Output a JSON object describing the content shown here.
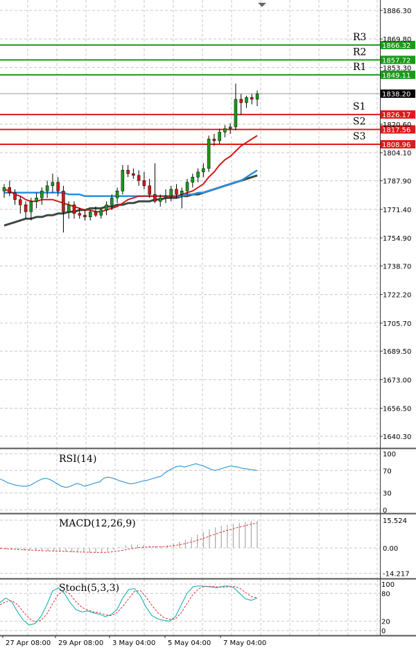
{
  "chart_data": [
    {
      "type": "candlestick",
      "y_ticks": [
        "1886.30",
        "1869.80",
        "1853.30",
        "1820.60",
        "1804.10",
        "1787.90",
        "1771.40",
        "1754.90",
        "1738.70",
        "1722.20",
        "1705.70",
        "1689.50",
        "1673.00",
        "1656.50",
        "1640.30"
      ],
      "ylim": [
        1634,
        1890
      ],
      "grid": true,
      "current_price": "1838.20",
      "current_price_value": 1838.2,
      "levels": [
        {
          "label": "R3",
          "value": 1866.32,
          "value_text": "1866.32",
          "color": "#1a9a1a"
        },
        {
          "label": "R2",
          "value": 1857.72,
          "value_text": "1857.72",
          "color": "#1a9a1a"
        },
        {
          "label": "R1",
          "value": 1849.11,
          "value_text": "1849.11",
          "color": "#1a9a1a"
        },
        {
          "label": "S1",
          "value": 1826.17,
          "value_text": "1826.17",
          "color": "#e01a1a"
        },
        {
          "label": "S2",
          "value": 1817.56,
          "value_text": "1817.56",
          "color": "#e01a1a"
        },
        {
          "label": "S3",
          "value": 1808.96,
          "value_text": "1808.96",
          "color": "#e01a1a"
        }
      ],
      "candles": [
        {
          "o": 1782,
          "h": 1786,
          "l": 1778,
          "c": 1784
        },
        {
          "o": 1784,
          "h": 1788,
          "l": 1779,
          "c": 1781
        },
        {
          "o": 1781,
          "h": 1783,
          "l": 1774,
          "c": 1777
        },
        {
          "o": 1777,
          "h": 1779,
          "l": 1769,
          "c": 1774
        },
        {
          "o": 1774,
          "h": 1776,
          "l": 1766,
          "c": 1770
        },
        {
          "o": 1770,
          "h": 1778,
          "l": 1765,
          "c": 1776
        },
        {
          "o": 1776,
          "h": 1781,
          "l": 1772,
          "c": 1778
        },
        {
          "o": 1778,
          "h": 1784,
          "l": 1774,
          "c": 1782
        },
        {
          "o": 1782,
          "h": 1788,
          "l": 1778,
          "c": 1785
        },
        {
          "o": 1785,
          "h": 1792,
          "l": 1781,
          "c": 1787
        },
        {
          "o": 1787,
          "h": 1790,
          "l": 1779,
          "c": 1782
        },
        {
          "o": 1782,
          "h": 1785,
          "l": 1758,
          "c": 1770
        },
        {
          "o": 1770,
          "h": 1776,
          "l": 1766,
          "c": 1774
        },
        {
          "o": 1774,
          "h": 1776,
          "l": 1766,
          "c": 1769
        },
        {
          "o": 1769,
          "h": 1772,
          "l": 1766,
          "c": 1768
        },
        {
          "o": 1768,
          "h": 1771,
          "l": 1765,
          "c": 1767
        },
        {
          "o": 1767,
          "h": 1771,
          "l": 1765,
          "c": 1770
        },
        {
          "o": 1770,
          "h": 1773,
          "l": 1767,
          "c": 1768
        },
        {
          "o": 1768,
          "h": 1772,
          "l": 1766,
          "c": 1771
        },
        {
          "o": 1771,
          "h": 1776,
          "l": 1768,
          "c": 1774
        },
        {
          "o": 1774,
          "h": 1780,
          "l": 1771,
          "c": 1778
        },
        {
          "o": 1778,
          "h": 1784,
          "l": 1775,
          "c": 1782
        },
        {
          "o": 1782,
          "h": 1797,
          "l": 1780,
          "c": 1794
        },
        {
          "o": 1794,
          "h": 1797,
          "l": 1790,
          "c": 1792
        },
        {
          "o": 1792,
          "h": 1795,
          "l": 1789,
          "c": 1791
        },
        {
          "o": 1791,
          "h": 1794,
          "l": 1785,
          "c": 1788
        },
        {
          "o": 1788,
          "h": 1793,
          "l": 1783,
          "c": 1785
        },
        {
          "o": 1785,
          "h": 1789,
          "l": 1778,
          "c": 1780
        },
        {
          "o": 1780,
          "h": 1798,
          "l": 1775,
          "c": 1776
        },
        {
          "o": 1776,
          "h": 1780,
          "l": 1773,
          "c": 1778
        },
        {
          "o": 1778,
          "h": 1783,
          "l": 1775,
          "c": 1779
        },
        {
          "o": 1779,
          "h": 1785,
          "l": 1776,
          "c": 1783
        },
        {
          "o": 1783,
          "h": 1786,
          "l": 1778,
          "c": 1780
        },
        {
          "o": 1780,
          "h": 1784,
          "l": 1772,
          "c": 1782
        },
        {
          "o": 1782,
          "h": 1789,
          "l": 1780,
          "c": 1787
        },
        {
          "o": 1787,
          "h": 1792,
          "l": 1784,
          "c": 1790
        },
        {
          "o": 1790,
          "h": 1795,
          "l": 1787,
          "c": 1793
        },
        {
          "o": 1793,
          "h": 1798,
          "l": 1790,
          "c": 1795
        },
        {
          "o": 1795,
          "h": 1814,
          "l": 1793,
          "c": 1812
        },
        {
          "o": 1812,
          "h": 1815,
          "l": 1808,
          "c": 1811
        },
        {
          "o": 1811,
          "h": 1818,
          "l": 1809,
          "c": 1816
        },
        {
          "o": 1816,
          "h": 1820,
          "l": 1813,
          "c": 1818
        },
        {
          "o": 1818,
          "h": 1821,
          "l": 1815,
          "c": 1819
        },
        {
          "o": 1819,
          "h": 1844,
          "l": 1817,
          "c": 1835
        },
        {
          "o": 1835,
          "h": 1838,
          "l": 1826,
          "c": 1833
        },
        {
          "o": 1833,
          "h": 1837,
          "l": 1830,
          "c": 1836
        },
        {
          "o": 1836,
          "h": 1838,
          "l": 1832,
          "c": 1835
        },
        {
          "o": 1835,
          "h": 1840,
          "l": 1831,
          "c": 1838
        }
      ],
      "ma_red": [
        1783,
        1782,
        1780,
        1779,
        1777,
        1776,
        1776,
        1777,
        1777,
        1777,
        1776,
        1775,
        1774,
        1773,
        1772,
        1771,
        1771,
        1770,
        1770,
        1771,
        1772,
        1773,
        1775,
        1777,
        1778,
        1779,
        1779,
        1779,
        1779,
        1779,
        1779,
        1779,
        1779,
        1780,
        1781,
        1782,
        1784,
        1786,
        1790,
        1793,
        1797,
        1800,
        1802,
        1805,
        1808,
        1810,
        1812,
        1814
      ],
      "ma_blue": [
        1781,
        1781,
        1781,
        1781,
        1781,
        1781,
        1781,
        1781,
        1781,
        1781,
        1781,
        1781,
        1780,
        1780,
        1780,
        1779,
        1779,
        1779,
        1779,
        1779,
        1779,
        1779,
        1779,
        1779,
        1779,
        1779,
        1779,
        1779,
        1779,
        1779,
        1779,
        1779,
        1779,
        1779,
        1780,
        1780,
        1781,
        1781,
        1782,
        1783,
        1784,
        1785,
        1786,
        1787,
        1788,
        1790,
        1792,
        1794
      ],
      "ma_gray": [
        1762,
        1763,
        1764,
        1765,
        1766,
        1766,
        1767,
        1767,
        1768,
        1768,
        1769,
        1769,
        1770,
        1770,
        1771,
        1771,
        1772,
        1772,
        1772,
        1773,
        1773,
        1774,
        1774,
        1775,
        1775,
        1776,
        1776,
        1776,
        1777,
        1777,
        1778,
        1778,
        1778,
        1779,
        1779,
        1780,
        1780,
        1781,
        1782,
        1783,
        1784,
        1785,
        1786,
        1787,
        1788,
        1789,
        1790,
        1791
      ],
      "x_labels": [
        "27 Apr 08:00",
        "29 Apr 08:00",
        "3 May 04:00",
        "5 May 04:00",
        "7 May 04:00"
      ]
    },
    {
      "type": "line",
      "title": "RSI(14)",
      "y_ticks": [
        "100",
        "70",
        "30",
        "0"
      ],
      "ylim": [
        0,
        100
      ],
      "values": [
        55,
        52,
        48,
        46,
        44,
        43,
        42,
        42,
        44,
        48,
        52,
        55,
        56,
        54,
        50,
        46,
        42,
        40,
        41,
        44,
        47,
        45,
        42,
        44,
        46,
        48,
        50,
        56,
        58,
        57,
        55,
        52,
        50,
        48,
        46,
        47,
        49,
        51,
        52,
        54,
        56,
        58,
        60,
        66,
        70,
        74,
        77,
        78,
        76,
        78,
        80,
        82,
        80,
        78,
        75,
        72,
        70,
        72,
        74,
        76,
        78,
        77,
        76,
        74,
        73,
        72,
        71,
        70
      ]
    },
    {
      "type": "bar",
      "title": "MACD(12,26,9)",
      "y_ticks": [
        "15.524",
        "0.00",
        "-14.217"
      ],
      "ylim": [
        -14.217,
        15.524
      ],
      "values": [
        -0.5,
        -0.8,
        -1.0,
        -1.2,
        -1.4,
        -1.5,
        -1.6,
        -1.7,
        -1.8,
        -1.9,
        -2.0,
        -2.2,
        -2.4,
        -2.5,
        -2.6,
        -2.7,
        -2.6,
        -2.4,
        -2.0,
        -1.0,
        0.5,
        1.5,
        2.0,
        1.8,
        1.5,
        1.2,
        1.0,
        0.8,
        1.5,
        2.5,
        3.5,
        4.5,
        6.0,
        7.5,
        9.0,
        10.5,
        11.5,
        12.5,
        13.0,
        13.5,
        14.0,
        14.5,
        15.0,
        15.2
      ],
      "signal": [
        -0.2,
        -0.4,
        -0.6,
        -0.8,
        -1.0,
        -1.2,
        -1.3,
        -1.5,
        -1.6,
        -1.7,
        -1.8,
        -1.9,
        -2.1,
        -2.2,
        -2.3,
        -2.4,
        -2.5,
        -2.5,
        -2.4,
        -2.1,
        -1.6,
        -1.0,
        -0.4,
        0.1,
        0.4,
        0.6,
        0.7,
        0.7,
        0.9,
        1.3,
        1.8,
        2.5,
        3.3,
        4.3,
        5.4,
        6.6,
        7.8,
        8.9,
        9.9,
        10.8,
        11.7,
        12.5,
        13.3,
        14.0
      ]
    },
    {
      "type": "line",
      "title": "Stoch(5,3,3)",
      "y_ticks": [
        "100",
        "80",
        "20",
        "0"
      ],
      "ylim": [
        0,
        100
      ],
      "k": [
        60,
        70,
        62,
        40,
        22,
        12,
        15,
        30,
        55,
        85,
        92,
        80,
        60,
        45,
        40,
        42,
        38,
        35,
        30,
        34,
        45,
        70,
        88,
        90,
        75,
        50,
        32,
        25,
        22,
        20,
        30,
        55,
        80,
        94,
        96,
        95,
        94,
        92,
        95,
        96,
        92,
        80,
        68,
        65,
        70
      ],
      "d": [
        55,
        62,
        64,
        56,
        40,
        26,
        18,
        22,
        35,
        58,
        78,
        85,
        78,
        62,
        50,
        44,
        40,
        38,
        34,
        32,
        38,
        52,
        68,
        84,
        86,
        72,
        54,
        38,
        28,
        24,
        25,
        38,
        58,
        78,
        90,
        95,
        95,
        94,
        93,
        94,
        95,
        91,
        82,
        73,
        70
      ]
    }
  ]
}
